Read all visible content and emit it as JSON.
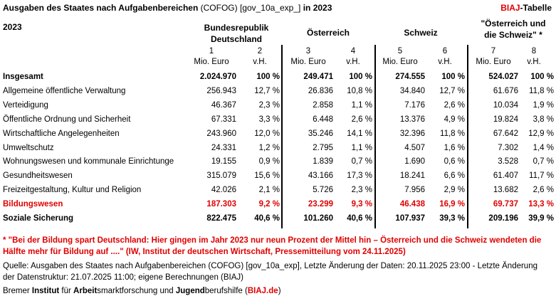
{
  "header": {
    "title_bold_1": "Ausgaben des Staates nach Aufgabenbereichen",
    "title_normal": " (COFOG) [gov_10a_exp_]",
    "title_bold_2": " in 2023",
    "badge_red": "BIAJ",
    "badge_rest": "-Tabelle",
    "year": "2023"
  },
  "columns": {
    "groups": [
      {
        "line1": "Bundesrepublik",
        "line2": "Deutschland"
      },
      {
        "line1": "Österreich",
        "line2": ""
      },
      {
        "line1": "Schweiz",
        "line2": ""
      },
      {
        "line1": "\"Österreich und",
        "line2": "die Schweiz\" *"
      }
    ],
    "numbers": [
      "1",
      "2",
      "3",
      "4",
      "5",
      "6",
      "7",
      "8"
    ],
    "units": [
      "Mio. Euro",
      "v.H.",
      "Mio. Euro",
      "v.H.",
      "Mio. Euro",
      "v.H.",
      "Mio. Euro",
      "v.H."
    ]
  },
  "rows": [
    {
      "label": "Insgesamt",
      "style": "bold",
      "values": [
        "2.024.970",
        "100 %",
        "249.471",
        "100 %",
        "274.555",
        "100 %",
        "524.027",
        "100 %"
      ]
    },
    {
      "label": "Allgemeine öffentliche Verwaltung",
      "style": "normal",
      "values": [
        "256.943",
        "12,7 %",
        "26.836",
        "10,8 %",
        "34.840",
        "12,7 %",
        "61.676",
        "11,8 %"
      ]
    },
    {
      "label": "Verteidigung",
      "style": "normal",
      "values": [
        "46.367",
        "2,3 %",
        "2.858",
        "1,1 %",
        "7.176",
        "2,6 %",
        "10.034",
        "1,9 %"
      ]
    },
    {
      "label": "Öffentliche Ordnung und Sicherheit",
      "style": "normal",
      "values": [
        "67.331",
        "3,3 %",
        "6.448",
        "2,6 %",
        "13.376",
        "4,9 %",
        "19.824",
        "3,8 %"
      ]
    },
    {
      "label": "Wirtschaftliche Angelegenheiten",
      "style": "normal",
      "values": [
        "243.960",
        "12,0 %",
        "35.246",
        "14,1 %",
        "32.396",
        "11,8 %",
        "67.642",
        "12,9 %"
      ]
    },
    {
      "label": "Umweltschutz",
      "style": "normal",
      "values": [
        "24.331",
        "1,2 %",
        "2.795",
        "1,1 %",
        "4.507",
        "1,6 %",
        "7.302",
        "1,4 %"
      ]
    },
    {
      "label": "Wohnungswesen und kommunale Einrichtunge",
      "style": "normal",
      "values": [
        "19.155",
        "0,9 %",
        "1.839",
        "0,7 %",
        "1.690",
        "0,6 %",
        "3.528",
        "0,7 %"
      ]
    },
    {
      "label": "Gesundheitswesen",
      "style": "normal",
      "values": [
        "315.079",
        "15,6 %",
        "43.166",
        "17,3 %",
        "18.241",
        "6,6 %",
        "61.407",
        "11,7 %"
      ]
    },
    {
      "label": "Freizeitgestaltung, Kultur und Religion",
      "style": "normal",
      "values": [
        "42.026",
        "2,1 %",
        "5.726",
        "2,3 %",
        "7.956",
        "2,9 %",
        "13.682",
        "2,6 %"
      ]
    },
    {
      "label": "Bildungswesen",
      "style": "red",
      "values": [
        "187.303",
        "9,2 %",
        "23.299",
        "9,3 %",
        "46.438",
        "16,9 %",
        "69.737",
        "13,3 %"
      ]
    },
    {
      "label": "Soziale Sicherung",
      "style": "bold",
      "values": [
        "822.475",
        "40,6 %",
        "101.260",
        "40,6 %",
        "107.937",
        "39,3 %",
        "209.196",
        "39,9 %"
      ]
    }
  ],
  "footnote": {
    "text": "* \"Bei der Bildung spart Deutschland: Hier gingen im Jahr 2023 nur neun Prozent der Mittel hin – Österreich und die Schweiz wendeten die Hälfte mehr für Bildung auf ....\" (IW, Institut der deutschen Wirtschaft, Pressemitteilung vom 24.11.2025)"
  },
  "source": {
    "text": "Quelle: Ausgaben des Staates nach Aufgabenbereichen (COFOG) [gov_10a_exp], Letzte Änderung der Daten: 20.11.2025 23:00 - Letzte Änderung der Datenstruktur: 21.07.2025 11:00; eigene Berechnungen (BIAJ)"
  },
  "credit": {
    "p1": "Bremer ",
    "p2": "Institut",
    "p3": " für ",
    "p4": "Arbeit",
    "p5": "smarktforschung und ",
    "p6": "Jugend",
    "p7": "berufshilfe (",
    "p8": "BIAJ.de",
    "p9": ")"
  },
  "colors": {
    "accent_red": "#e00000",
    "text": "#000000",
    "background": "#ffffff"
  }
}
